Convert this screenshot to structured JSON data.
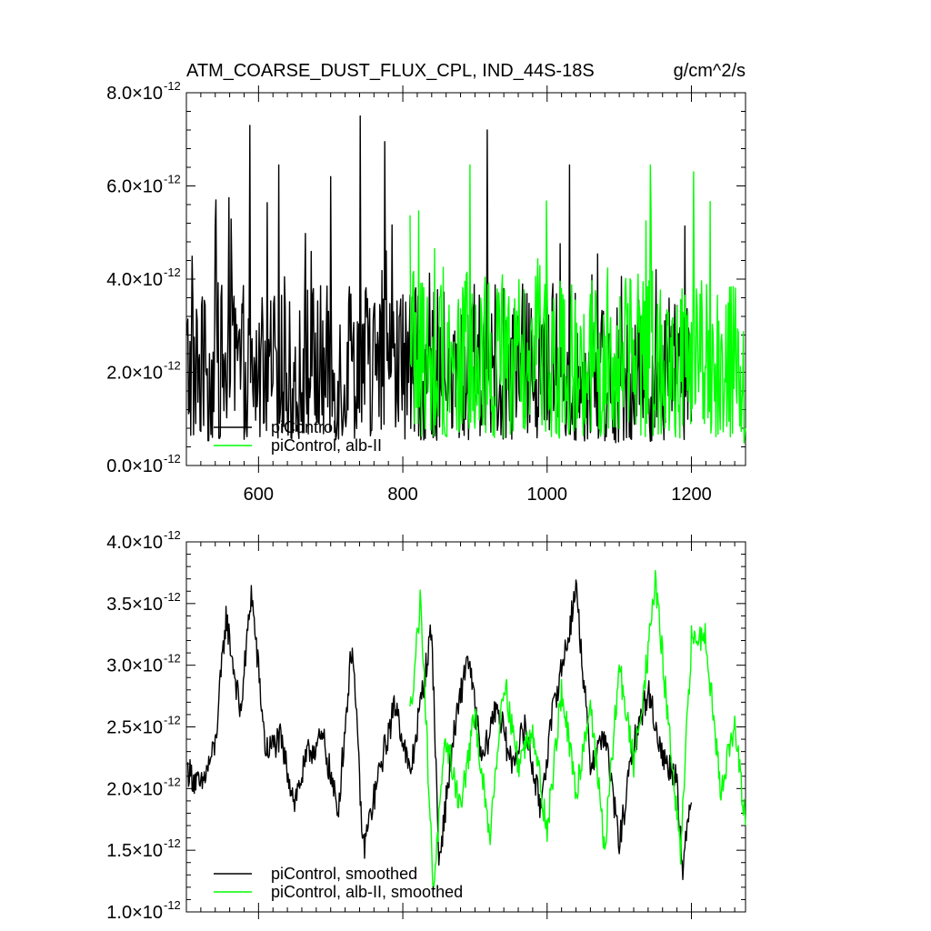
{
  "header": {
    "title": "ATM_COARSE_DUST_FLUX_CPL, IND_44S-18S",
    "units": "g/cm^2/s"
  },
  "colors": {
    "piControl": "#000000",
    "alb_II": "#00ff00"
  },
  "chart_data": [
    {
      "type": "line",
      "x_range": [
        500,
        1275
      ],
      "ylim": [
        0,
        8
      ],
      "y_multiplier_text": "×10",
      "y_exponent_text": "-12",
      "y_ticks": [
        {
          "value": 0,
          "label": "0.0"
        },
        {
          "value": 2,
          "label": "2.0"
        },
        {
          "value": 4,
          "label": "4.0"
        },
        {
          "value": 6,
          "label": "6.0"
        },
        {
          "value": 8,
          "label": "8.0"
        }
      ],
      "x_ticks": [
        {
          "value": 600,
          "label": "600"
        },
        {
          "value": 800,
          "label": "800"
        },
        {
          "value": 1000,
          "label": "1000"
        },
        {
          "value": 1200,
          "label": "1200"
        }
      ],
      "legend_position": "bottom-left",
      "series": [
        {
          "name": "piControl",
          "color": "#000000",
          "x": [
            500,
            530,
            560,
            590,
            620,
            650,
            680,
            710,
            740,
            770,
            800,
            830,
            860,
            890,
            920,
            950,
            980,
            1010,
            1040,
            1070,
            1100,
            1130,
            1160,
            1190,
            1200
          ],
          "y": [
            2.3,
            2.0,
            2.4,
            2.1,
            2.2,
            2.0,
            2.3,
            2.1,
            2.4,
            2.2,
            2.3,
            2.1,
            2.2,
            2.0,
            2.3,
            2.2,
            2.1,
            2.3,
            2.0,
            2.2,
            1.9,
            2.1,
            2.0,
            2.2,
            1.6
          ],
          "spikes": [
            {
              "x": 541,
              "y": 5.7
            },
            {
              "x": 588,
              "y": 7.3
            },
            {
              "x": 628,
              "y": 6.45
            },
            {
              "x": 700,
              "y": 6.2
            },
            {
              "x": 741,
              "y": 7.5
            },
            {
              "x": 775,
              "y": 6.95
            },
            {
              "x": 917,
              "y": 7.2
            },
            {
              "x": 1031,
              "y": 6.45
            }
          ]
        },
        {
          "name": "piControl, alb-II",
          "color": "#00ff00",
          "x": [
            810,
            840,
            870,
            900,
            930,
            960,
            990,
            1020,
            1050,
            1080,
            1110,
            1140,
            1170,
            1200,
            1230,
            1260,
            1275
          ],
          "y": [
            2.6,
            2.4,
            2.5,
            2.3,
            2.4,
            2.2,
            2.5,
            2.3,
            2.4,
            2.2,
            2.3,
            2.5,
            2.2,
            2.4,
            2.2,
            2.3,
            0.6
          ],
          "spikes": [
            {
              "x": 893,
              "y": 6.45
            },
            {
              "x": 1143,
              "y": 6.45
            },
            {
              "x": 1203,
              "y": 6.3
            }
          ]
        }
      ]
    },
    {
      "type": "line",
      "x_range": [
        500,
        1275
      ],
      "ylim": [
        1.0,
        4.0
      ],
      "y_multiplier_text": "×10",
      "y_exponent_text": "-12",
      "y_ticks": [
        {
          "value": 1.0,
          "label": "1.0"
        },
        {
          "value": 1.5,
          "label": "1.5"
        },
        {
          "value": 2.0,
          "label": "2.0"
        },
        {
          "value": 2.5,
          "label": "2.5"
        },
        {
          "value": 3.0,
          "label": "3.0"
        },
        {
          "value": 3.5,
          "label": "3.5"
        },
        {
          "value": 4.0,
          "label": "4.0"
        }
      ],
      "x_ticks": [
        600,
        800,
        1000,
        1200
      ],
      "legend_position": "bottom-left",
      "series": [
        {
          "name": "piControl, smoothed",
          "color": "#000000",
          "x": [
            502,
            520,
            540,
            555,
            575,
            590,
            610,
            630,
            650,
            670,
            690,
            710,
            730,
            745,
            770,
            790,
            810,
            840,
            850,
            870,
            890,
            910,
            930,
            950,
            970,
            990,
            1010,
            1030,
            1040,
            1060,
            1080,
            1100,
            1120,
            1140,
            1160,
            1180,
            1188,
            1200
          ],
          "y": [
            2.15,
            2.0,
            2.35,
            3.4,
            2.6,
            3.6,
            2.3,
            2.4,
            1.9,
            2.3,
            2.4,
            1.8,
            3.2,
            1.5,
            2.2,
            2.7,
            2.1,
            3.3,
            1.4,
            2.4,
            3.1,
            2.2,
            2.7,
            2.2,
            2.5,
            1.85,
            2.7,
            3.25,
            3.65,
            2.2,
            2.45,
            1.55,
            2.35,
            2.8,
            2.25,
            2.1,
            1.3,
            2.0
          ],
          "spikes": []
        },
        {
          "name": "piControl, alb-II, smoothed",
          "color": "#00ff00",
          "x": [
            810,
            825,
            842,
            860,
            880,
            900,
            920,
            940,
            960,
            980,
            1000,
            1020,
            1040,
            1060,
            1080,
            1100,
            1120,
            1140,
            1150,
            1170,
            1185,
            1200,
            1220,
            1240,
            1260,
            1275
          ],
          "y": [
            2.6,
            3.55,
            1.2,
            2.4,
            1.85,
            2.6,
            1.6,
            2.9,
            2.2,
            2.5,
            1.65,
            2.8,
            1.95,
            2.7,
            1.5,
            3.0,
            2.2,
            3.1,
            3.7,
            2.4,
            1.45,
            3.2,
            3.25,
            2.0,
            2.5,
            1.7
          ],
          "spikes": []
        }
      ]
    }
  ]
}
